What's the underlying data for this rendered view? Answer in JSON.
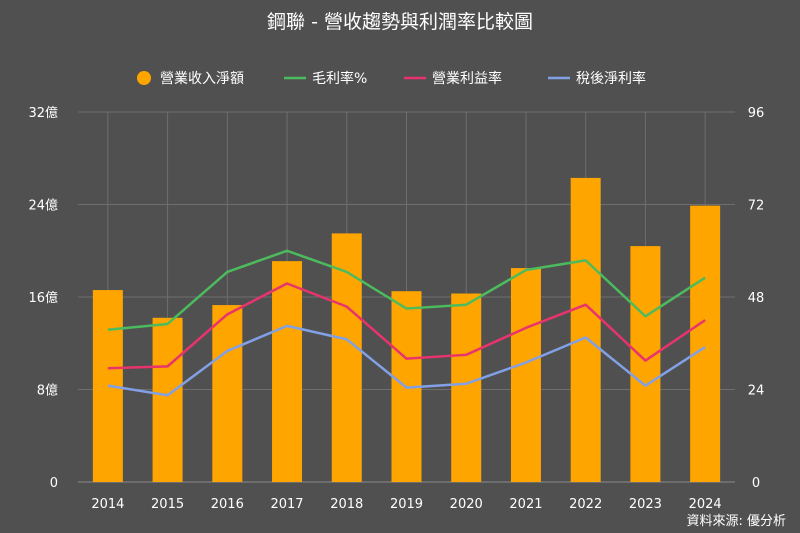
{
  "chart_data": {
    "type": "bar",
    "title": "鋼聯 - 營收趨勢與利潤率比較圖",
    "source": "資料來源: 優分析",
    "categories": [
      "2014",
      "2015",
      "2016",
      "2017",
      "2018",
      "2019",
      "2020",
      "2021",
      "2022",
      "2023",
      "2024"
    ],
    "y_left": {
      "ylim": [
        0,
        32
      ],
      "ticks": [
        0,
        8,
        16,
        24,
        32
      ],
      "tick_labels": [
        "0",
        "8億",
        "16億",
        "24億",
        "32億"
      ]
    },
    "y_right": {
      "ylim": [
        0,
        96
      ],
      "ticks": [
        0,
        24,
        48,
        72,
        96
      ],
      "tick_labels": [
        "0",
        "24",
        "48",
        "72",
        "96"
      ]
    },
    "grid": true,
    "legend_position": "top",
    "series": [
      {
        "name": "營業收入淨額",
        "type": "bar",
        "axis": "left",
        "color": "#ffa500",
        "values": [
          16.6,
          14.2,
          15.3,
          19.1,
          21.5,
          16.5,
          16.3,
          18.5,
          26.3,
          20.4,
          23.9
        ]
      },
      {
        "name": "毛利率%",
        "type": "line",
        "axis": "right",
        "color": "#4cbb5e",
        "values": [
          39.5,
          41,
          54.5,
          60,
          54.5,
          45,
          46,
          55,
          57.5,
          43,
          53
        ]
      },
      {
        "name": "營業利益率",
        "type": "line",
        "axis": "right",
        "color": "#e8336d",
        "values": [
          29.5,
          30,
          43.5,
          51.5,
          45.5,
          32,
          33,
          40,
          46,
          31.5,
          42
        ]
      },
      {
        "name": "稅後淨利率",
        "type": "line",
        "axis": "right",
        "color": "#82a0e6",
        "values": [
          25,
          22.5,
          34,
          40.5,
          37,
          24.5,
          25.5,
          31,
          37.5,
          25,
          35
        ]
      }
    ]
  }
}
